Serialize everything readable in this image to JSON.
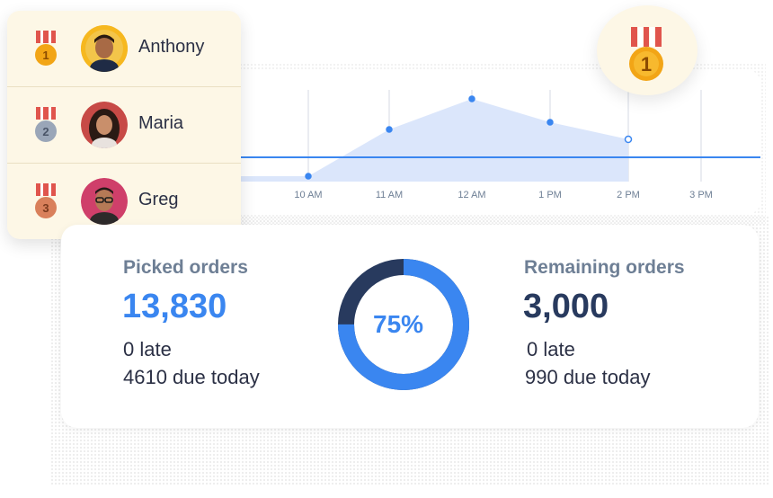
{
  "leaderboard": [
    {
      "rank": "1",
      "name": "Anthony",
      "medal": "gold-medal-icon"
    },
    {
      "rank": "2",
      "name": "Maria",
      "medal": "silver-medal-icon"
    },
    {
      "rank": "3",
      "name": "Greg",
      "medal": "bronze-medal-icon"
    }
  ],
  "award": {
    "rank": "1",
    "icon": "gold-medal-icon"
  },
  "chart": {
    "x_ticks": [
      "10 AM",
      "11 AM",
      "12 AM",
      "1 PM",
      "2 PM",
      "3 PM"
    ]
  },
  "picked": {
    "title": "Picked orders",
    "value": "13,830",
    "late": "0 late",
    "due": "4610 due today"
  },
  "remaining": {
    "title": "Remaining orders",
    "value": "3,000",
    "late": "0 late",
    "due": "990 due today"
  },
  "progress": {
    "label": "75%",
    "fraction": 0.75
  },
  "colors": {
    "accent_blue": "#3a86f0",
    "dark_navy": "#283a5e",
    "slate_title": "#6e7f95",
    "gold": "#f2a516",
    "silver": "#9aa6b8",
    "bronze": "#d9805b",
    "ribbon_red": "#e0554d",
    "area_fill": "#dbe6fb"
  }
}
